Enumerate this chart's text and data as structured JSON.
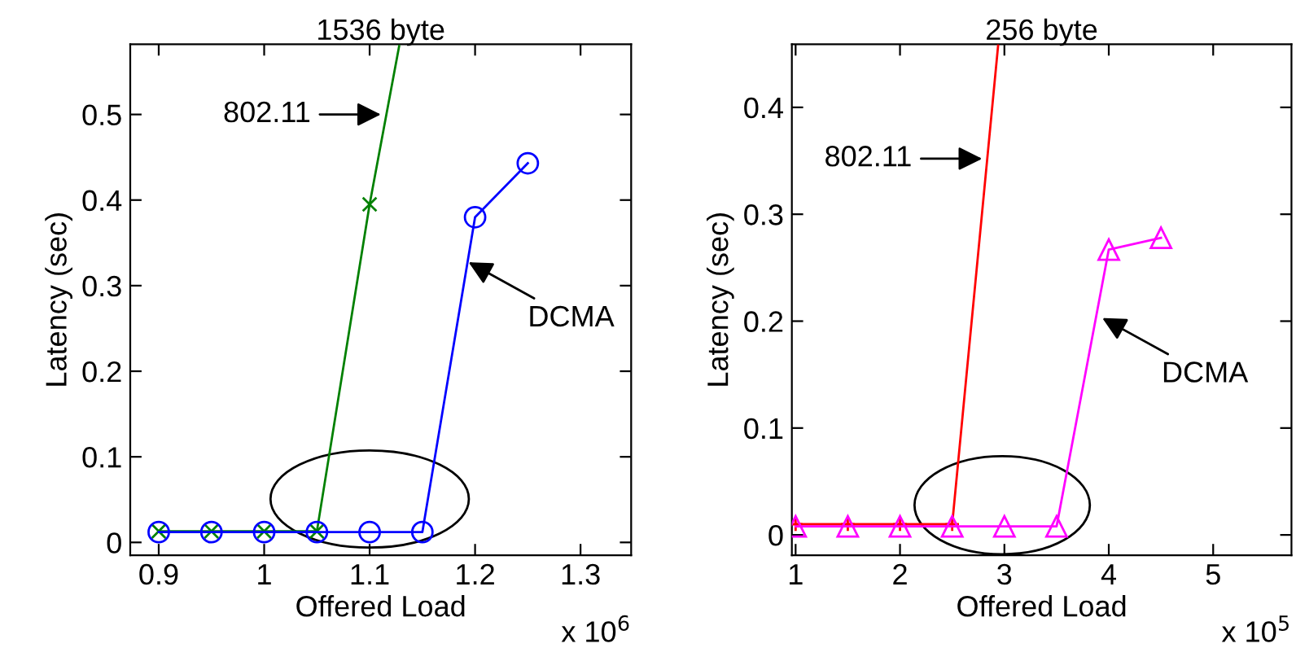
{
  "chart_data": [
    {
      "type": "line",
      "title": "1536 byte",
      "xlabel": "Offered Load",
      "ylabel": "Latency (sec)",
      "xlim": [
        0.873,
        1.348
      ],
      "xticks": [
        0.9,
        1,
        1.1,
        1.2,
        1.3
      ],
      "ylim": [
        -0.015,
        0.582
      ],
      "yticks": [
        0,
        0.1,
        0.2,
        0.3,
        0.4,
        0.5
      ],
      "grid": false,
      "series": [
        {
          "color": "#008000",
          "marker": "cross",
          "x": [
            0.9,
            0.95,
            1.0,
            1.05,
            1.1,
            1.128
          ],
          "values": [
            0.013,
            0.013,
            0.013,
            0.013,
            0.395,
            0.58
          ]
        },
        {
          "color": "#0000ff",
          "marker": "circle",
          "x": [
            0.9,
            0.95,
            1.0,
            1.05,
            1.1,
            1.15,
            1.2,
            1.25
          ],
          "values": [
            0.012,
            0.012,
            0.012,
            0.012,
            0.012,
            0.012,
            0.38,
            0.443
          ]
        }
      ],
      "annotations": [
        {
          "text": "802.11",
          "x": 1.115,
          "y": 0.5
        },
        {
          "text": "DCMA",
          "x": 1.19,
          "y": 0.33
        },
        "x 10$^{6}$"
      ]
    },
    {
      "type": "line",
      "title": "256 byte",
      "xlabel": "Offered Load",
      "ylabel": "Latency (sec)",
      "xlim": [
        0.964,
        5.75
      ],
      "xticks": [
        1,
        2,
        3,
        4,
        5
      ],
      "ylim": [
        -0.019,
        0.459
      ],
      "yticks": [
        0,
        0.1,
        0.2,
        0.3,
        0.4
      ],
      "grid": false,
      "series": [
        {
          "color": "#ff0000",
          "marker": "plus",
          "x": [
            1,
            1.5,
            2,
            2.5,
            2.94
          ],
          "values": [
            0.01,
            0.01,
            0.01,
            0.01,
            0.458
          ]
        },
        {
          "color": "#ff00ff",
          "marker": "triangle",
          "x": [
            1,
            1.5,
            2,
            2.5,
            3,
            3.5,
            4,
            4.5
          ],
          "values": [
            0.008,
            0.008,
            0.008,
            0.008,
            0.008,
            0.008,
            0.267,
            0.278
          ]
        }
      ],
      "annotations": [
        {
          "text": "802.11",
          "x": 2.83,
          "y": 0.352
        },
        {
          "text": "DCMA",
          "x": 3.9,
          "y": 0.205
        },
        "x 10$^{5}$"
      ]
    }
  ]
}
